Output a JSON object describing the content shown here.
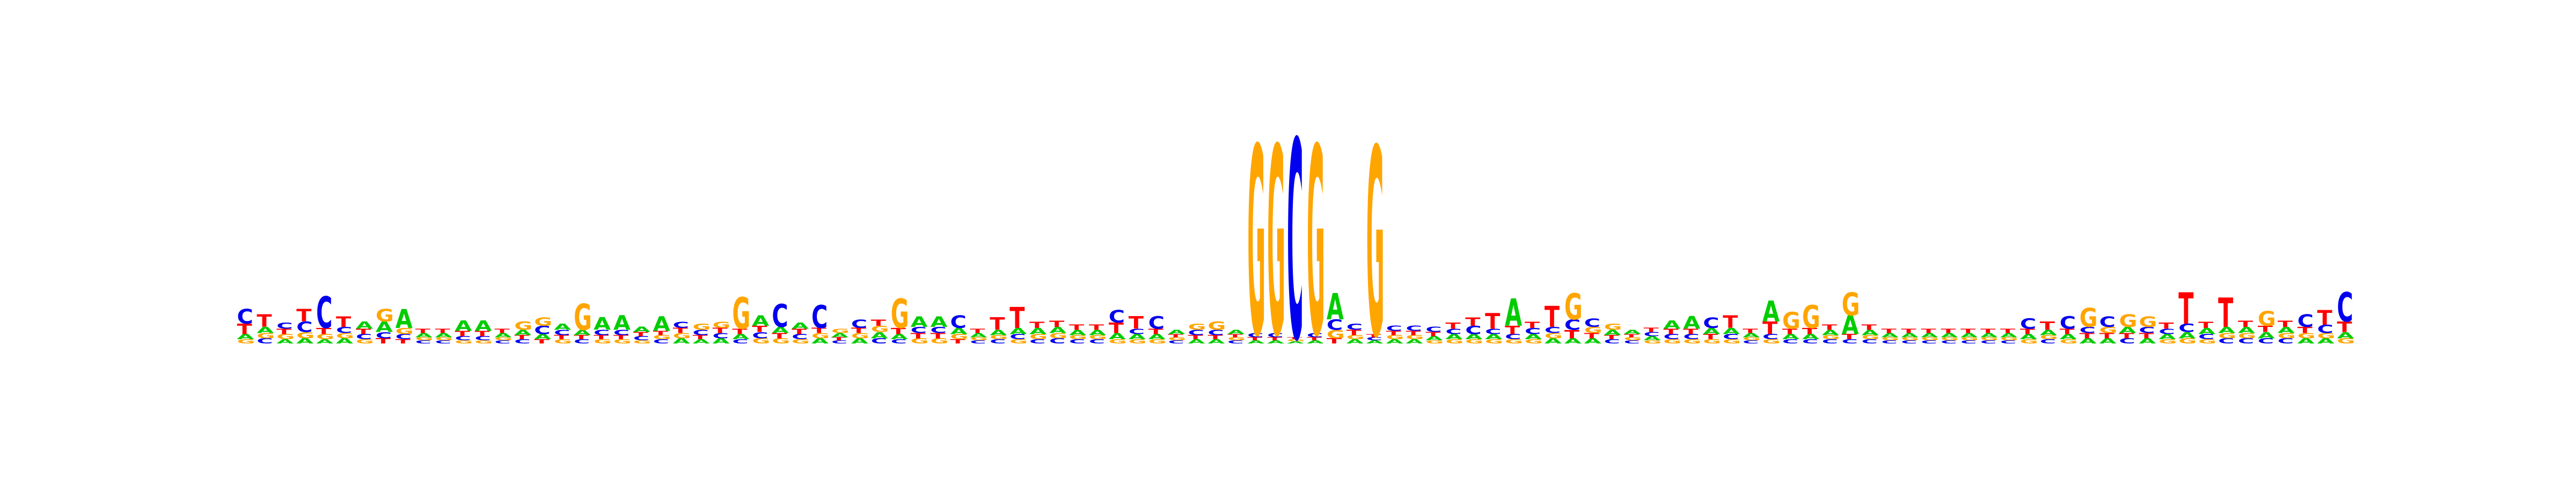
{
  "chart_data": {
    "type": "sequence-logo",
    "alphabet": [
      "A",
      "C",
      "G",
      "T"
    ],
    "colors": {
      "A": "#00cc00",
      "C": "#0000ee",
      "G": "#ffa500",
      "T": "#ff0000"
    },
    "ylim": [
      0,
      2
    ],
    "positions": [
      {
        "A": 0.05,
        "C": 0.14,
        "G": 0.04,
        "T": 0.1
      },
      {
        "A": 0.06,
        "C": 0.05,
        "G": 0.05,
        "T": 0.12
      },
      {
        "A": 0.04,
        "C": 0.06,
        "G": 0.05,
        "T": 0.05
      },
      {
        "A": 0.05,
        "C": 0.1,
        "G": 0.06,
        "T": 0.12
      },
      {
        "A": 0.04,
        "C": 0.3,
        "G": 0.05,
        "T": 0.06
      },
      {
        "A": 0.05,
        "C": 0.06,
        "G": 0.05,
        "T": 0.1
      },
      {
        "A": 0.07,
        "C": 0.05,
        "G": 0.04,
        "T": 0.05
      },
      {
        "A": 0.1,
        "C": 0.06,
        "G": 0.12,
        "T": 0.05
      },
      {
        "A": 0.18,
        "C": 0.05,
        "G": 0.06,
        "T": 0.04
      },
      {
        "A": 0.04,
        "C": 0.03,
        "G": 0.03,
        "T": 0.04
      },
      {
        "A": 0.04,
        "C": 0.03,
        "G": 0.03,
        "T": 0.04
      },
      {
        "A": 0.1,
        "C": 0.04,
        "G": 0.03,
        "T": 0.05
      },
      {
        "A": 0.1,
        "C": 0.04,
        "G": 0.03,
        "T": 0.05
      },
      {
        "A": 0.04,
        "C": 0.03,
        "G": 0.03,
        "T": 0.04
      },
      {
        "A": 0.05,
        "C": 0.04,
        "G": 0.08,
        "T": 0.04
      },
      {
        "A": 0.05,
        "C": 0.08,
        "G": 0.08,
        "T": 0.04
      },
      {
        "A": 0.06,
        "C": 0.05,
        "G": 0.04,
        "T": 0.04
      },
      {
        "A": 0.05,
        "C": 0.04,
        "G": 0.25,
        "T": 0.04
      },
      {
        "A": 0.12,
        "C": 0.05,
        "G": 0.04,
        "T": 0.04
      },
      {
        "A": 0.14,
        "C": 0.05,
        "G": 0.04,
        "T": 0.04
      },
      {
        "A": 0.05,
        "C": 0.04,
        "G": 0.03,
        "T": 0.04
      },
      {
        "A": 0.14,
        "C": 0.04,
        "G": 0.04,
        "T": 0.04
      },
      {
        "A": 0.05,
        "C": 0.06,
        "G": 0.05,
        "T": 0.05
      },
      {
        "A": 0.04,
        "C": 0.05,
        "G": 0.06,
        "T": 0.04
      },
      {
        "A": 0.05,
        "C": 0.05,
        "G": 0.06,
        "T": 0.05
      },
      {
        "A": 0.05,
        "C": 0.04,
        "G": 0.3,
        "T": 0.05
      },
      {
        "A": 0.1,
        "C": 0.06,
        "G": 0.05,
        "T": 0.06
      },
      {
        "A": 0.06,
        "C": 0.22,
        "G": 0.05,
        "T": 0.05
      },
      {
        "A": 0.06,
        "C": 0.05,
        "G": 0.04,
        "T": 0.05
      },
      {
        "A": 0.05,
        "C": 0.22,
        "G": 0.05,
        "T": 0.05
      },
      {
        "A": 0.04,
        "C": 0.03,
        "G": 0.04,
        "T": 0.03
      },
      {
        "A": 0.05,
        "C": 0.08,
        "G": 0.05,
        "T": 0.05
      },
      {
        "A": 0.06,
        "C": 0.05,
        "G": 0.06,
        "T": 0.06
      },
      {
        "A": 0.05,
        "C": 0.04,
        "G": 0.28,
        "T": 0.06
      },
      {
        "A": 0.1,
        "C": 0.06,
        "G": 0.05,
        "T": 0.05
      },
      {
        "A": 0.1,
        "C": 0.06,
        "G": 0.05,
        "T": 0.05
      },
      {
        "A": 0.06,
        "C": 0.12,
        "G": 0.05,
        "T": 0.04
      },
      {
        "A": 0.04,
        "C": 0.03,
        "G": 0.03,
        "T": 0.04
      },
      {
        "A": 0.05,
        "C": 0.04,
        "G": 0.04,
        "T": 0.12
      },
      {
        "A": 0.06,
        "C": 0.05,
        "G": 0.04,
        "T": 0.2
      },
      {
        "A": 0.06,
        "C": 0.04,
        "G": 0.05,
        "T": 0.06
      },
      {
        "A": 0.06,
        "C": 0.05,
        "G": 0.05,
        "T": 0.06
      },
      {
        "A": 0.05,
        "C": 0.04,
        "G": 0.04,
        "T": 0.05
      },
      {
        "A": 0.05,
        "C": 0.04,
        "G": 0.04,
        "T": 0.05
      },
      {
        "A": 0.06,
        "C": 0.12,
        "G": 0.04,
        "T": 0.1
      },
      {
        "A": 0.05,
        "C": 0.05,
        "G": 0.04,
        "T": 0.12
      },
      {
        "A": 0.05,
        "C": 0.12,
        "G": 0.04,
        "T": 0.05
      },
      {
        "A": 0.04,
        "C": 0.03,
        "G": 0.03,
        "T": 0.03
      },
      {
        "A": 0.04,
        "C": 0.05,
        "G": 0.06,
        "T": 0.04
      },
      {
        "A": 0.04,
        "C": 0.05,
        "G": 0.08,
        "T": 0.04
      },
      {
        "A": 0.04,
        "C": 0.03,
        "G": 0.03,
        "T": 0.03
      },
      {
        "A": 0.03,
        "C": 0.04,
        "G": 1.8,
        "T": 0.03
      },
      {
        "A": 0.03,
        "C": 0.04,
        "G": 1.8,
        "T": 0.03
      },
      {
        "A": 0.02,
        "C": 1.9,
        "G": 0.02,
        "T": 0.02
      },
      {
        "A": 0.03,
        "C": 0.04,
        "G": 1.8,
        "T": 0.03
      },
      {
        "A": 0.25,
        "C": 0.1,
        "G": 0.08,
        "T": 0.05
      },
      {
        "A": 0.04,
        "C": 0.06,
        "G": 0.04,
        "T": 0.05
      },
      {
        "A": 0.03,
        "C": 0.03,
        "G": 1.8,
        "T": 0.03
      },
      {
        "A": 0.04,
        "C": 0.05,
        "G": 0.04,
        "T": 0.04
      },
      {
        "A": 0.04,
        "C": 0.05,
        "G": 0.04,
        "T": 0.04
      },
      {
        "A": 0.04,
        "C": 0.05,
        "G": 0.03,
        "T": 0.04
      },
      {
        "A": 0.05,
        "C": 0.05,
        "G": 0.04,
        "T": 0.06
      },
      {
        "A": 0.05,
        "C": 0.08,
        "G": 0.04,
        "T": 0.08
      },
      {
        "A": 0.05,
        "C": 0.05,
        "G": 0.04,
        "T": 0.15
      },
      {
        "A": 0.26,
        "C": 0.05,
        "G": 0.04,
        "T": 0.08
      },
      {
        "A": 0.05,
        "C": 0.06,
        "G": 0.04,
        "T": 0.06
      },
      {
        "A": 0.05,
        "C": 0.06,
        "G": 0.05,
        "T": 0.2
      },
      {
        "A": 0.05,
        "C": 0.1,
        "G": 0.25,
        "T": 0.08
      },
      {
        "A": 0.05,
        "C": 0.08,
        "G": 0.06,
        "T": 0.05
      },
      {
        "A": 0.05,
        "C": 0.04,
        "G": 0.06,
        "T": 0.04
      },
      {
        "A": 0.04,
        "C": 0.03,
        "G": 0.03,
        "T": 0.03
      },
      {
        "A": 0.04,
        "C": 0.04,
        "G": 0.03,
        "T": 0.04
      },
      {
        "A": 0.08,
        "C": 0.05,
        "G": 0.04,
        "T": 0.05
      },
      {
        "A": 0.12,
        "C": 0.05,
        "G": 0.04,
        "T": 0.05
      },
      {
        "A": 0.06,
        "C": 0.1,
        "G": 0.04,
        "T": 0.05
      },
      {
        "A": 0.06,
        "C": 0.05,
        "G": 0.04,
        "T": 0.12
      },
      {
        "A": 0.04,
        "C": 0.03,
        "G": 0.03,
        "T": 0.04
      },
      {
        "A": 0.2,
        "C": 0.05,
        "G": 0.04,
        "T": 0.12
      },
      {
        "A": 0.05,
        "C": 0.04,
        "G": 0.16,
        "T": 0.05
      },
      {
        "A": 0.05,
        "C": 0.04,
        "G": 0.22,
        "T": 0.06
      },
      {
        "A": 0.05,
        "C": 0.04,
        "G": 0.04,
        "T": 0.05
      },
      {
        "A": 0.18,
        "C": 0.04,
        "G": 0.22,
        "T": 0.05
      },
      {
        "A": 0.05,
        "C": 0.04,
        "G": 0.04,
        "T": 0.05
      },
      {
        "A": 0.04,
        "C": 0.03,
        "G": 0.03,
        "T": 0.04
      },
      {
        "A": 0.04,
        "C": 0.03,
        "G": 0.03,
        "T": 0.04
      },
      {
        "A": 0.04,
        "C": 0.03,
        "G": 0.03,
        "T": 0.04
      },
      {
        "A": 0.04,
        "C": 0.03,
        "G": 0.03,
        "T": 0.04
      },
      {
        "A": 0.04,
        "C": 0.03,
        "G": 0.03,
        "T": 0.04
      },
      {
        "A": 0.04,
        "C": 0.03,
        "G": 0.03,
        "T": 0.04
      },
      {
        "A": 0.04,
        "C": 0.03,
        "G": 0.03,
        "T": 0.04
      },
      {
        "A": 0.05,
        "C": 0.1,
        "G": 0.04,
        "T": 0.05
      },
      {
        "A": 0.05,
        "C": 0.04,
        "G": 0.04,
        "T": 0.08
      },
      {
        "A": 0.05,
        "C": 0.12,
        "G": 0.04,
        "T": 0.05
      },
      {
        "A": 0.05,
        "C": 0.06,
        "G": 0.18,
        "T": 0.05
      },
      {
        "A": 0.05,
        "C": 0.1,
        "G": 0.06,
        "T": 0.05
      },
      {
        "A": 0.06,
        "C": 0.05,
        "G": 0.12,
        "T": 0.05
      },
      {
        "A": 0.05,
        "C": 0.06,
        "G": 0.1,
        "T": 0.05
      },
      {
        "A": 0.05,
        "C": 0.05,
        "G": 0.04,
        "T": 0.06
      },
      {
        "A": 0.06,
        "C": 0.08,
        "G": 0.05,
        "T": 0.3
      },
      {
        "A": 0.06,
        "C": 0.05,
        "G": 0.04,
        "T": 0.06
      },
      {
        "A": 0.06,
        "C": 0.05,
        "G": 0.05,
        "T": 0.28
      },
      {
        "A": 0.06,
        "C": 0.05,
        "G": 0.05,
        "T": 0.06
      },
      {
        "A": 0.06,
        "C": 0.05,
        "G": 0.14,
        "T": 0.06
      },
      {
        "A": 0.06,
        "C": 0.05,
        "G": 0.05,
        "T": 0.06
      },
      {
        "A": 0.05,
        "C": 0.12,
        "G": 0.05,
        "T": 0.06
      },
      {
        "A": 0.05,
        "C": 0.08,
        "G": 0.05,
        "T": 0.14
      },
      {
        "A": 0.06,
        "C": 0.28,
        "G": 0.05,
        "T": 0.1
      }
    ]
  }
}
